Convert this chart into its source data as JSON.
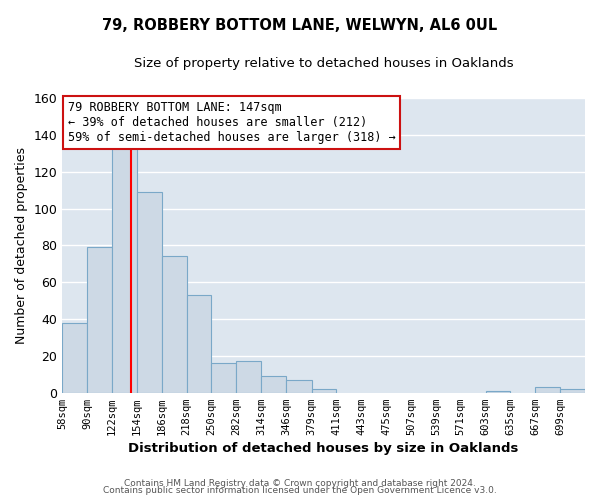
{
  "title": "79, ROBBERY BOTTOM LANE, WELWYN, AL6 0UL",
  "subtitle": "Size of property relative to detached houses in Oaklands",
  "xlabel": "Distribution of detached houses by size in Oaklands",
  "ylabel": "Number of detached properties",
  "bar_color": "#cdd9e5",
  "bar_edge_color": "#7aa8c8",
  "plot_bg_color": "#dde6ef",
  "fig_bg_color": "#ffffff",
  "grid_color": "#ffffff",
  "bin_labels": [
    "58sqm",
    "90sqm",
    "122sqm",
    "154sqm",
    "186sqm",
    "218sqm",
    "250sqm",
    "282sqm",
    "314sqm",
    "346sqm",
    "379sqm",
    "411sqm",
    "443sqm",
    "475sqm",
    "507sqm",
    "539sqm",
    "571sqm",
    "603sqm",
    "635sqm",
    "667sqm",
    "699sqm"
  ],
  "bar_heights": [
    38,
    79,
    134,
    109,
    74,
    53,
    16,
    17,
    9,
    7,
    2,
    0,
    0,
    0,
    0,
    0,
    0,
    1,
    0,
    3,
    2
  ],
  "bin_edges": [
    58,
    90,
    122,
    154,
    186,
    218,
    250,
    282,
    314,
    346,
    379,
    411,
    443,
    475,
    507,
    539,
    571,
    603,
    635,
    667,
    699,
    731
  ],
  "ylim": [
    0,
    160
  ],
  "yticks": [
    0,
    20,
    40,
    60,
    80,
    100,
    120,
    140,
    160
  ],
  "red_line_x": 147,
  "annotation_text": "79 ROBBERY BOTTOM LANE: 147sqm\n← 39% of detached houses are smaller (212)\n59% of semi-detached houses are larger (318) →",
  "annotation_box_facecolor": "#ffffff",
  "annotation_box_edgecolor": "#cc1111",
  "footer1": "Contains HM Land Registry data © Crown copyright and database right 2024.",
  "footer2": "Contains public sector information licensed under the Open Government Licence v3.0."
}
